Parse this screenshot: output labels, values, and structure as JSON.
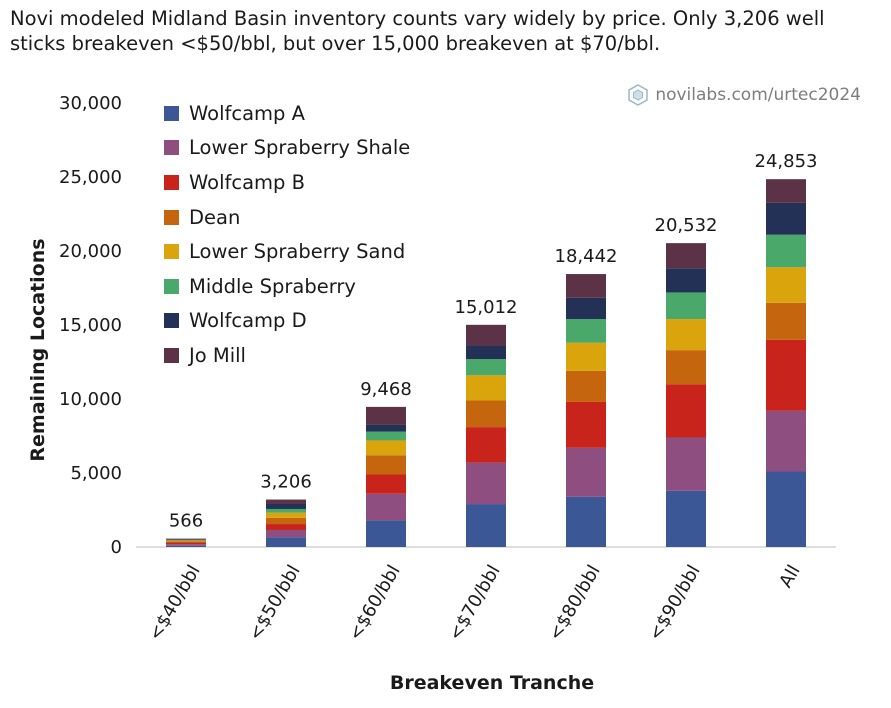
{
  "subtitle": "Novi modeled Midland Basin inventory counts vary widely by price. Only 3,206 well sticks breakeven <$50/bbl, but over 15,000 breakeven at $70/bbl.",
  "watermark": "novilabs.com/urtec2024",
  "chart_data": {
    "type": "bar",
    "stacked": true,
    "title": "",
    "xlabel": "Breakeven Tranche",
    "ylabel": "Remaining Locations",
    "ylim": [
      0,
      30000
    ],
    "yticks": [
      0,
      5000,
      10000,
      15000,
      20000,
      25000,
      30000
    ],
    "ytick_labels": [
      "0",
      "5,000",
      "10,000",
      "15,000",
      "20,000",
      "25,000",
      "30,000"
    ],
    "categories": [
      "<$40/bbl",
      "<$50/bbl",
      "<$60/bbl",
      "<$70/bbl",
      "<$80/bbl",
      "<$90/bbl",
      "All"
    ],
    "totals": [
      566,
      3206,
      9468,
      15012,
      18442,
      20532,
      24853
    ],
    "total_labels": [
      "566",
      "3,206",
      "9,468",
      "15,012",
      "18,442",
      "20,532",
      "24,853"
    ],
    "legend_position": "top-left",
    "grid": false,
    "series": [
      {
        "name": "Wolfcamp A",
        "color": "#3b5796",
        "values": [
          90,
          650,
          1800,
          2900,
          3400,
          3800,
          5100
        ]
      },
      {
        "name": "Lower Spraberry Shale",
        "color": "#8f4e80",
        "values": [
          100,
          500,
          1800,
          2800,
          3300,
          3600,
          4100
        ]
      },
      {
        "name": "Wolfcamp B",
        "color": "#c8241c",
        "values": [
          110,
          400,
          1300,
          2400,
          3100,
          3600,
          4800
        ]
      },
      {
        "name": "Dean",
        "color": "#c5650e",
        "values": [
          80,
          420,
          1300,
          1800,
          2100,
          2300,
          2500
        ]
      },
      {
        "name": "Lower Spraberry Sand",
        "color": "#d9a40c",
        "values": [
          60,
          350,
          1000,
          1700,
          1900,
          2100,
          2400
        ]
      },
      {
        "name": "Middle Spraberry",
        "color": "#4aa86a",
        "values": [
          40,
          250,
          600,
          1100,
          1600,
          1800,
          2200
        ]
      },
      {
        "name": "Wolfcamp D",
        "color": "#233157",
        "values": [
          36,
          336,
          468,
          912,
          1442,
          1632,
          2153
        ]
      },
      {
        "name": "Jo Mill",
        "color": "#5b3246",
        "values": [
          50,
          300,
          1200,
          1400,
          1600,
          1700,
          1600
        ]
      }
    ]
  }
}
